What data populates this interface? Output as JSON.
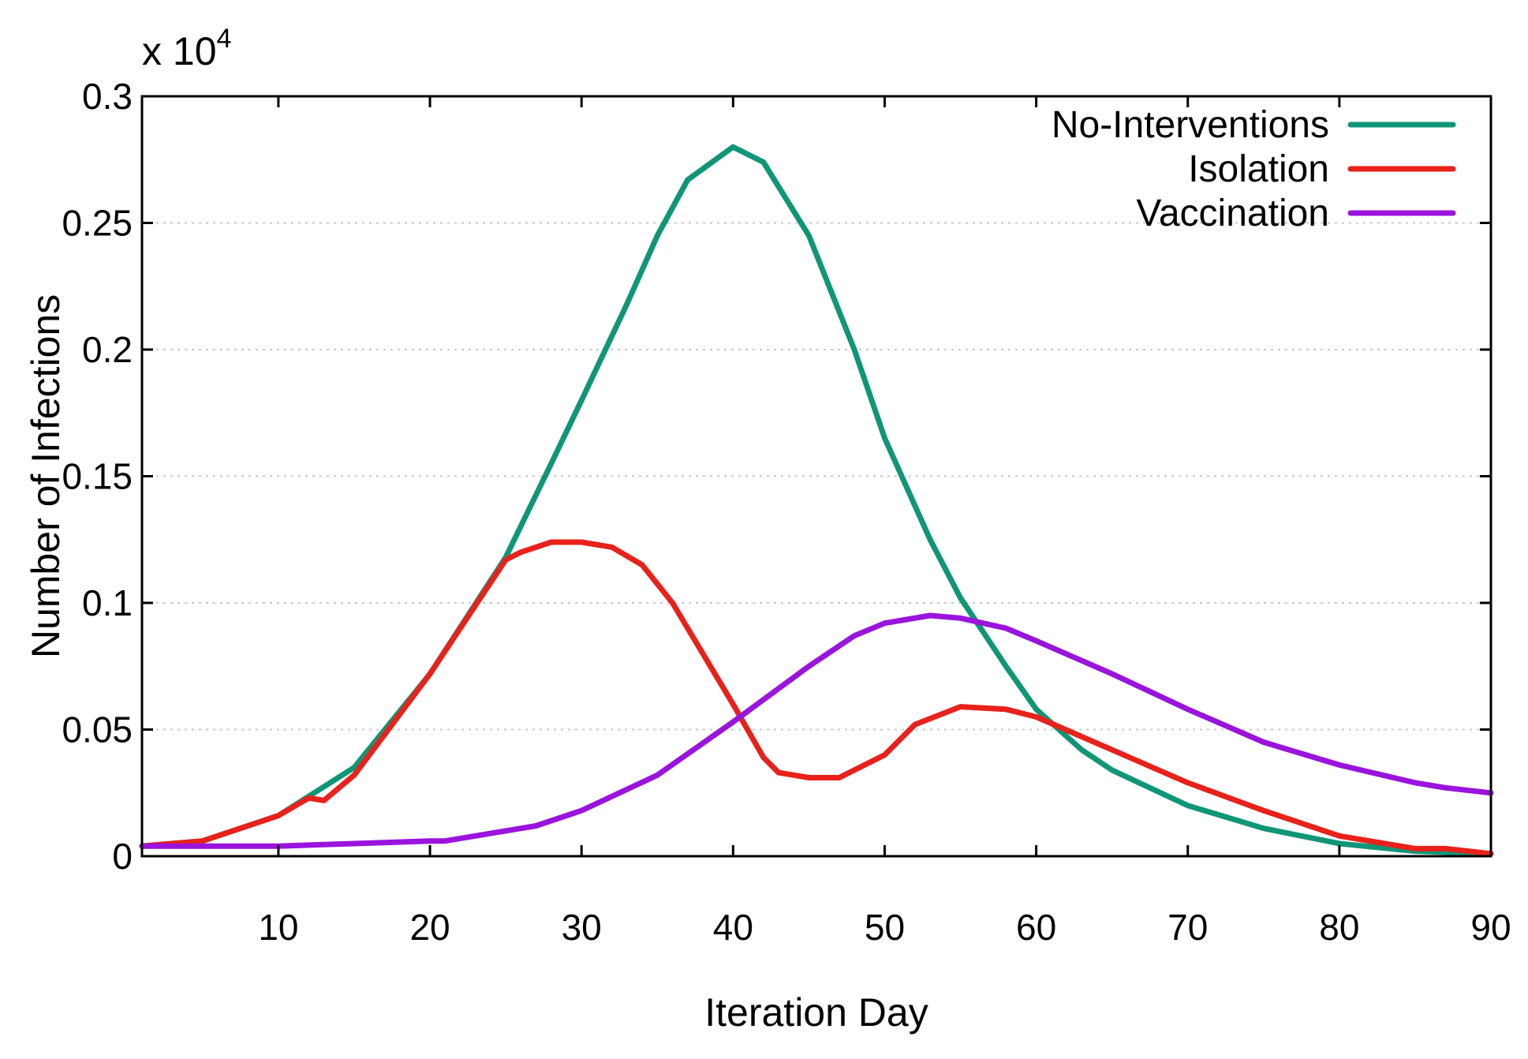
{
  "chart_data": {
    "type": "line",
    "title": "",
    "xlabel": "Iteration Day",
    "ylabel": "Number of Infections",
    "y_multiplier": "x 10",
    "y_multiplier_exp": "4",
    "xlim": [
      1,
      90
    ],
    "ylim": [
      0,
      0.3
    ],
    "x_ticks": [
      10,
      20,
      30,
      40,
      50,
      60,
      70,
      80,
      90
    ],
    "x_tick_labels": [
      "10",
      "20",
      "30",
      "40",
      "50",
      "60",
      "70",
      "80",
      "90"
    ],
    "y_ticks": [
      0,
      0.05,
      0.1,
      0.15,
      0.2,
      0.25,
      0.3
    ],
    "y_tick_labels": [
      "0",
      "0.05",
      "0.1",
      "0.15",
      "0.2",
      "0.25",
      "0.3"
    ],
    "grid": "horizontal-dotted",
    "legend_position": "top-right",
    "series": [
      {
        "name": "No-Interventions",
        "color": "#0f9677",
        "x": [
          1,
          5,
          10,
          15,
          20,
          25,
          28,
          30,
          33,
          35,
          37,
          40,
          42,
          45,
          48,
          50,
          53,
          55,
          58,
          60,
          63,
          65,
          70,
          75,
          80,
          85,
          90
        ],
        "y": [
          0.004,
          0.006,
          0.016,
          0.035,
          0.072,
          0.118,
          0.155,
          0.18,
          0.218,
          0.245,
          0.267,
          0.28,
          0.274,
          0.245,
          0.2,
          0.165,
          0.125,
          0.102,
          0.075,
          0.058,
          0.042,
          0.034,
          0.02,
          0.011,
          0.005,
          0.002,
          0.001
        ]
      },
      {
        "name": "Isolation",
        "color": "#e8221a",
        "x": [
          1,
          5,
          10,
          12,
          13,
          15,
          20,
          25,
          26,
          28,
          30,
          32,
          34,
          36,
          38,
          40,
          42,
          43,
          45,
          47,
          50,
          52,
          55,
          58,
          60,
          65,
          70,
          75,
          80,
          85,
          87,
          90
        ],
        "y": [
          0.004,
          0.006,
          0.016,
          0.023,
          0.022,
          0.032,
          0.072,
          0.117,
          0.12,
          0.124,
          0.124,
          0.122,
          0.115,
          0.1,
          0.08,
          0.06,
          0.039,
          0.033,
          0.031,
          0.031,
          0.04,
          0.052,
          0.059,
          0.058,
          0.055,
          0.042,
          0.029,
          0.018,
          0.008,
          0.003,
          0.003,
          0.001
        ]
      },
      {
        "name": "Vaccination",
        "color": "#9a14dd",
        "x": [
          1,
          10,
          15,
          20,
          21,
          25,
          27,
          30,
          35,
          40,
          45,
          48,
          50,
          53,
          55,
          58,
          60,
          65,
          70,
          75,
          80,
          85,
          87,
          90
        ],
        "y": [
          0.004,
          0.004,
          0.005,
          0.006,
          0.006,
          0.01,
          0.012,
          0.018,
          0.032,
          0.053,
          0.075,
          0.087,
          0.092,
          0.095,
          0.094,
          0.09,
          0.085,
          0.072,
          0.058,
          0.045,
          0.036,
          0.029,
          0.027,
          0.025
        ]
      }
    ]
  }
}
